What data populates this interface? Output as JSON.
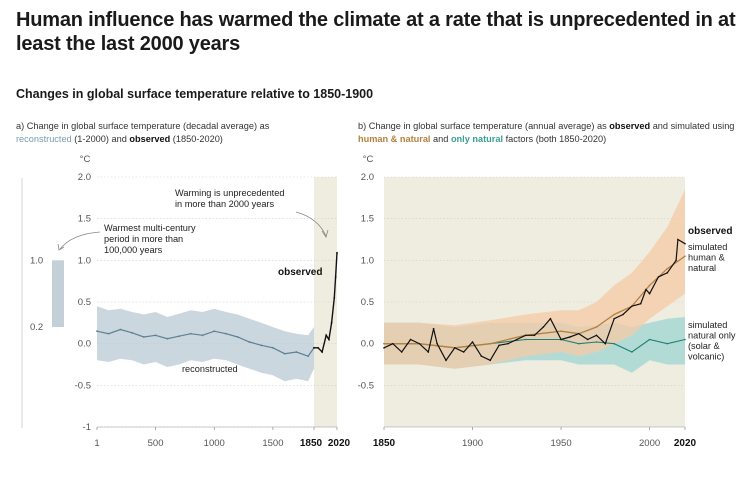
{
  "title": "Human influence has warmed the climate at a rate that is unprecedented in at least the last 2000 years",
  "subtitle": "Changes in global surface temperature relative to 1850-1900",
  "panel_a": {
    "caption_prefix": "a) Change in global surface temperature (decadal average) as ",
    "caption_reconstructed": "reconstructed",
    "caption_mid": " (1-2000) and ",
    "caption_observed": "observed",
    "caption_suffix": " (1850-2020)"
  },
  "panel_b": {
    "caption_prefix": "b) Change in global surface temperature (annual average) as ",
    "caption_observed": "observed",
    "caption_mid1": " and simulated using ",
    "caption_human": "human & natural",
    "caption_mid2": " and ",
    "caption_natural": "only natural",
    "caption_suffix": " factors (both 1850-2020)"
  },
  "colors": {
    "observed": "#111111",
    "reconstructed": "#5f7f93",
    "reconstructed_band": "#b9cad4",
    "human_natural": "#b5813e",
    "human_natural_band": "#f5cba7",
    "natural": "#1f7f74",
    "natural_band": "#a8d8d3",
    "shade": "#efece0",
    "multicentury_bar": "#c3d0d8"
  },
  "chart_data": [
    {
      "type": "line",
      "panel": "a",
      "ylabel": "°C",
      "ylim": [
        -1,
        2
      ],
      "yticks": [
        "2.0",
        "1.5",
        "1.0",
        "0.5",
        "0.0",
        "-0.5",
        "-1"
      ],
      "xticks": [
        "1",
        "500",
        "1000",
        "1500"
      ],
      "xticks_bold": [
        "1850",
        "2020"
      ],
      "series": [
        {
          "name": "reconstructed",
          "x": [
            1,
            100,
            200,
            300,
            400,
            500,
            600,
            700,
            800,
            900,
            1000,
            1100,
            1200,
            1300,
            1400,
            1500,
            1600,
            1700,
            1800,
            1850
          ],
          "y": [
            0.15,
            0.12,
            0.17,
            0.13,
            0.08,
            0.1,
            0.06,
            0.09,
            0.12,
            0.1,
            0.15,
            0.12,
            0.08,
            0.02,
            -0.02,
            -0.05,
            -0.12,
            -0.1,
            -0.15,
            -0.05
          ],
          "band_upper": [
            0.45,
            0.4,
            0.42,
            0.38,
            0.35,
            0.38,
            0.32,
            0.36,
            0.4,
            0.38,
            0.42,
            0.38,
            0.35,
            0.3,
            0.25,
            0.2,
            0.15,
            0.12,
            0.1,
            0.2
          ],
          "band_lower": [
            -0.2,
            -0.22,
            -0.18,
            -0.2,
            -0.25,
            -0.22,
            -0.28,
            -0.25,
            -0.2,
            -0.22,
            -0.18,
            -0.2,
            -0.25,
            -0.3,
            -0.35,
            -0.38,
            -0.45,
            -0.42,
            -0.45,
            -0.3
          ]
        },
        {
          "name": "observed",
          "x": [
            1850,
            1880,
            1910,
            1940,
            1960,
            1980,
            2000,
            2010,
            2020
          ],
          "y": [
            -0.05,
            -0.05,
            -0.1,
            0.1,
            0.05,
            0.25,
            0.55,
            0.8,
            1.09
          ]
        }
      ],
      "multicentury_bar": {
        "low": 0.2,
        "high": 1.0
      },
      "multicentury_labels": [
        "1.0",
        "0.2"
      ],
      "annotations": {
        "unprecedented": [
          "Warming is unprecedented",
          "in more than 2000 years"
        ],
        "multicentury": [
          "Warmest multi-century",
          "period in more than",
          "100,000 years"
        ],
        "observed_label": "observed",
        "reconstructed_label": "reconstructed"
      }
    },
    {
      "type": "line",
      "panel": "b",
      "ylabel": "°C",
      "ylim": [
        -1,
        2
      ],
      "yticks": [
        "2.0",
        "1.5",
        "1.0",
        "0.5",
        "0.0",
        "-0.5"
      ],
      "xticks": [
        "1900",
        "1950",
        "2000"
      ],
      "xticks_bold": [
        "1850",
        "2020"
      ],
      "series": [
        {
          "name": "observed",
          "x": [
            1850,
            1855,
            1860,
            1865,
            1870,
            1875,
            1878,
            1880,
            1885,
            1890,
            1895,
            1900,
            1905,
            1910,
            1915,
            1920,
            1925,
            1930,
            1935,
            1940,
            1944,
            1950,
            1955,
            1960,
            1965,
            1970,
            1975,
            1980,
            1985,
            1990,
            1995,
            1998,
            2000,
            2005,
            2010,
            2015,
            2016,
            2020
          ],
          "y": [
            -0.05,
            0.0,
            -0.1,
            0.05,
            0.0,
            -0.1,
            0.18,
            0.0,
            -0.2,
            -0.05,
            -0.1,
            0.02,
            -0.15,
            -0.2,
            -0.02,
            0.0,
            0.05,
            0.1,
            0.1,
            0.2,
            0.3,
            0.05,
            0.08,
            0.12,
            0.05,
            0.1,
            0.0,
            0.3,
            0.35,
            0.45,
            0.48,
            0.65,
            0.6,
            0.8,
            0.85,
            1.0,
            1.25,
            1.2
          ]
        },
        {
          "name": "simulated human & natural",
          "x": [
            1850,
            1870,
            1890,
            1910,
            1930,
            1950,
            1960,
            1970,
            1980,
            1990,
            2000,
            2010,
            2020
          ],
          "y": [
            0.0,
            0.0,
            -0.05,
            0.0,
            0.1,
            0.15,
            0.12,
            0.2,
            0.35,
            0.45,
            0.7,
            0.9,
            1.05
          ],
          "band_upper": [
            0.25,
            0.25,
            0.22,
            0.28,
            0.35,
            0.4,
            0.4,
            0.5,
            0.7,
            0.85,
            1.1,
            1.4,
            1.85
          ],
          "band_lower": [
            -0.25,
            -0.25,
            -0.3,
            -0.25,
            -0.15,
            -0.1,
            -0.15,
            -0.1,
            0.0,
            0.1,
            0.3,
            0.45,
            0.6
          ]
        },
        {
          "name": "simulated natural only",
          "x": [
            1850,
            1870,
            1890,
            1910,
            1930,
            1950,
            1960,
            1970,
            1980,
            1990,
            2000,
            2010,
            2020
          ],
          "y": [
            0.0,
            0.0,
            -0.05,
            0.0,
            0.05,
            0.05,
            0.0,
            0.02,
            0.0,
            -0.1,
            0.05,
            0.0,
            0.05
          ],
          "band_upper": [
            0.25,
            0.25,
            0.2,
            0.25,
            0.25,
            0.25,
            0.2,
            0.22,
            0.25,
            0.2,
            0.25,
            0.3,
            0.32
          ],
          "band_lower": [
            -0.25,
            -0.25,
            -0.3,
            -0.25,
            -0.2,
            -0.2,
            -0.25,
            -0.25,
            -0.25,
            -0.35,
            -0.2,
            -0.25,
            -0.25
          ]
        }
      ],
      "labels": {
        "observed": "observed",
        "human_natural": [
          "simulated",
          "human &",
          "natural"
        ],
        "natural": [
          "simulated",
          "natural only",
          "(solar &",
          "volcanic)"
        ]
      }
    }
  ]
}
